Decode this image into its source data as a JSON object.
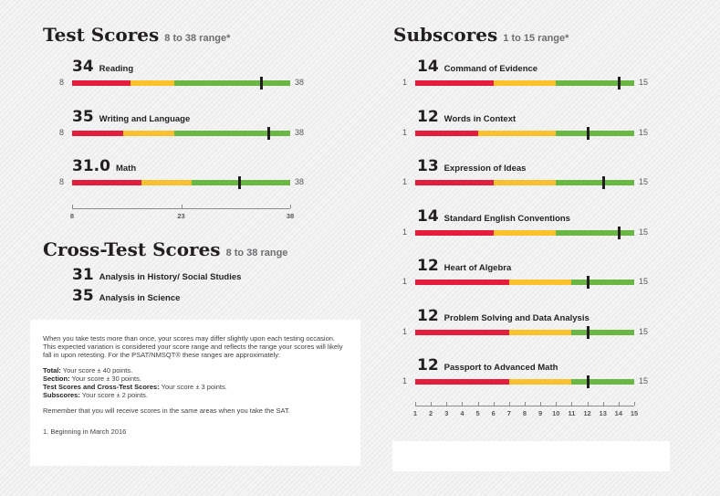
{
  "test_scores": {
    "title": "Test Scores",
    "range": "8 to 38 range*",
    "min": 8,
    "max": 38,
    "min_label": "8",
    "max_label": "38",
    "items": [
      {
        "score": 34,
        "score_text": "34",
        "name": "Reading",
        "bands": [
          16,
          22
        ]
      },
      {
        "score": 35,
        "score_text": "35",
        "name": "Writing and Language",
        "bands": [
          15,
          22
        ]
      },
      {
        "score": 31,
        "score_text": "31.0",
        "name": "Math",
        "bands": [
          17.5,
          24.5
        ]
      }
    ],
    "axis_ticks": [
      {
        "value": 8,
        "label": "8"
      },
      {
        "value": 23,
        "label": "23"
      },
      {
        "value": 38,
        "label": "38"
      }
    ]
  },
  "cross_test": {
    "title": "Cross-Test Scores",
    "range": "8 to 38 range",
    "items": [
      {
        "score": "31",
        "name": "Analysis in History/ Social Studies"
      },
      {
        "score": "35",
        "name": "Analysis in Science"
      }
    ]
  },
  "info": {
    "intro": "When you take tests more than once, your scores may differ slightly upon each testing occasion. This expected variation is considered your score range and reflects the range your scores will likely fall in upon retesting. For the PSAT/NMSQT® these ranges are approximately:",
    "ranges": [
      {
        "label": "Total:",
        "text": " Your score ± 40 points."
      },
      {
        "label": "Section:",
        "text": " Your score ± 30 points."
      },
      {
        "label": "Test Scores and Cross-Test Scores:",
        "text": " Your score ± 3 points."
      },
      {
        "label": "Subscores:",
        "text": " Your score ± 2 points."
      }
    ],
    "remember": "Remember that you will receive scores in the same areas when you take the SAT.",
    "footnote": "1. Beginning in March 2016"
  },
  "subscores": {
    "title": "Subscores",
    "range": "1 to 15 range*",
    "min": 1,
    "max": 15,
    "min_label": "1",
    "max_label": "15",
    "items": [
      {
        "score": 14,
        "score_text": "14",
        "name": "Command of Evidence",
        "bands": [
          6,
          10
        ]
      },
      {
        "score": 12,
        "score_text": "12",
        "name": "Words in Context",
        "bands": [
          5,
          10
        ]
      },
      {
        "score": 13,
        "score_text": "13",
        "name": "Expression of Ideas",
        "bands": [
          6,
          10
        ]
      },
      {
        "score": 14,
        "score_text": "14",
        "name": "Standard English Conventions",
        "bands": [
          6,
          10
        ]
      },
      {
        "score": 12,
        "score_text": "12",
        "name": "Heart of Algebra",
        "bands": [
          7,
          11
        ]
      },
      {
        "score": 12,
        "score_text": "12",
        "name": "Problem Solving and Data Analysis",
        "bands": [
          7,
          11
        ]
      },
      {
        "score": 12,
        "score_text": "12",
        "name": "Passport to Advanced Math",
        "bands": [
          7,
          11
        ]
      }
    ],
    "axis_ticks": [
      {
        "value": 1,
        "label": "1"
      },
      {
        "value": 2,
        "label": "2"
      },
      {
        "value": 3,
        "label": "3"
      },
      {
        "value": 4,
        "label": "4"
      },
      {
        "value": 5,
        "label": "5"
      },
      {
        "value": 6,
        "label": "6"
      },
      {
        "value": 7,
        "label": "7"
      },
      {
        "value": 8,
        "label": "8"
      },
      {
        "value": 9,
        "label": "9"
      },
      {
        "value": 10,
        "label": "10"
      },
      {
        "value": 11,
        "label": "11"
      },
      {
        "value": 12,
        "label": "12"
      },
      {
        "value": 13,
        "label": "13"
      },
      {
        "value": 14,
        "label": "14"
      },
      {
        "value": 15,
        "label": "15"
      }
    ]
  },
  "colors": {
    "low": "#e31e3c",
    "mid": "#fdc12e",
    "high": "#6bb743",
    "marker": "#231f20"
  }
}
